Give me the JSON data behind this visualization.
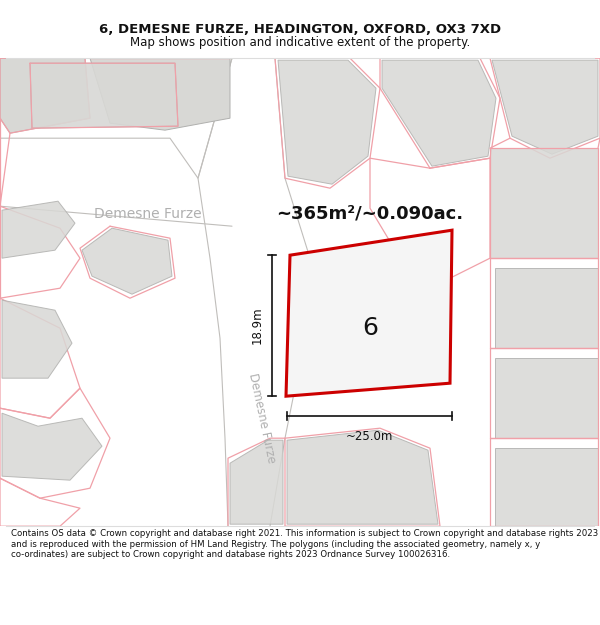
{
  "title_line1": "6, DEMESNE FURZE, HEADINGTON, OXFORD, OX3 7XD",
  "title_line2": "Map shows position and indicative extent of the property.",
  "area_text": "~365m²/~0.090ac.",
  "number_label": "6",
  "dim_horizontal": "~25.0m",
  "dim_vertical": "18.9m",
  "street_label": "Demesne Furze",
  "footer_text": "Contains OS data © Crown copyright and database right 2021. This information is subject to Crown copyright and database rights 2023 and is reproduced with the permission of HM Land Registry. The polygons (including the associated geometry, namely x, y co-ordinates) are subject to Crown copyright and database rights 2023 Ordnance Survey 100026316.",
  "bg_color": "#ffffff",
  "map_bg": "#f2f0ed",
  "road_color": "#ffffff",
  "plot_fill": "#f0f0f0",
  "plot_edge": "#cc0000",
  "building_fill": "#d8d8d5",
  "building_edge": "#b0b0ae",
  "pink_line": "#f0a0a8",
  "dim_color": "#111111",
  "text_color": "#111111",
  "street_text_color": "#b0b0b0",
  "footer_color": "#111111",
  "title_fontsize": 9.5,
  "subtitle_fontsize": 8.5,
  "area_fontsize": 13,
  "number_fontsize": 18,
  "dim_fontsize": 8.5,
  "street_fontsize": 10,
  "footer_fontsize": 6.2
}
